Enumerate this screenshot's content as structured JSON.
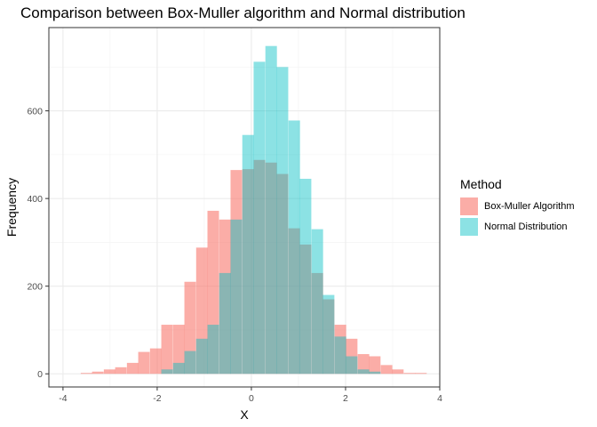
{
  "chart_data": {
    "type": "bar",
    "title": "Comparison between Box-Muller algorithm and Normal distribution",
    "xlabel": "X",
    "ylabel": "Frequency",
    "xlim": [
      -4.3,
      4.0
    ],
    "ylim": [
      -30,
      790
    ],
    "x_ticks": [
      -4,
      -2,
      0,
      2,
      4
    ],
    "y_ticks": [
      0,
      200,
      400,
      600
    ],
    "grid": true,
    "legend": {
      "title": "Method",
      "position": "right",
      "entries": [
        "Box-Muller Algorithm",
        "Normal Distribution"
      ]
    },
    "bin_width": 0.245,
    "bin_centers": [
      -3.75,
      -3.5,
      -3.26,
      -3.01,
      -2.77,
      -2.52,
      -2.28,
      -2.03,
      -1.79,
      -1.54,
      -1.3,
      -1.05,
      -0.81,
      -0.56,
      -0.32,
      -0.07,
      0.17,
      0.42,
      0.66,
      0.91,
      1.15,
      1.4,
      1.64,
      1.89,
      2.13,
      2.38,
      2.62,
      2.87,
      3.11,
      3.36,
      3.6
    ],
    "series": [
      {
        "name": "Box-Muller Algorithm",
        "color": "#F8766D",
        "values": [
          0,
          2,
          5,
          10,
          15,
          25,
          50,
          58,
          112,
          112,
          210,
          288,
          372,
          352,
          465,
          467,
          488,
          482,
          456,
          332,
          295,
          230,
          170,
          112,
          80,
          45,
          40,
          20,
          10,
          2,
          2
        ]
      },
      {
        "name": "Normal Distribution",
        "color": "#00BFC4",
        "values": [
          0,
          0,
          0,
          0,
          0,
          0,
          0,
          0,
          10,
          25,
          52,
          80,
          112,
          230,
          352,
          545,
          712,
          748,
          700,
          578,
          445,
          330,
          180,
          85,
          40,
          10,
          5,
          0,
          0,
          0,
          0
        ]
      }
    ]
  }
}
